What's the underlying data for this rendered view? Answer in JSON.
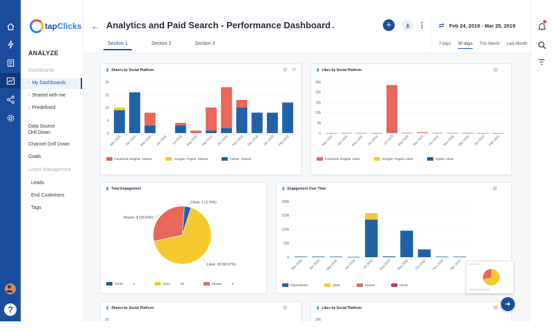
{
  "brand": {
    "logo_text_a": "tap",
    "logo_text_b": "Clicks"
  },
  "nav": {
    "section": "ANALYZE",
    "items": [
      {
        "label": "Dashboards",
        "muted": true
      },
      {
        "label": "My Dashboards",
        "selected": true
      },
      {
        "label": "Shared with me"
      },
      {
        "label": "Predefined"
      },
      {
        "label": "Data Source"
      },
      {
        "label": "Drill Down"
      },
      {
        "label": "Channel Drill Down"
      },
      {
        "label": "Goals"
      },
      {
        "label": "Leads Management",
        "muted": true
      },
      {
        "label": "Leads"
      },
      {
        "label": "End Customers"
      },
      {
        "label": "Tags"
      }
    ]
  },
  "header": {
    "title": "Analytics and Paid Search - Performance Dashboard",
    "date_range": "Feb 24, 2019 - Mar 25, 2019",
    "tabs": [
      "Section 1",
      "Section 2",
      "Section 3"
    ],
    "active_tab": 0,
    "ranges": [
      "7 days",
      "30 days",
      "This Month",
      "Last Month"
    ],
    "active_range": 1
  },
  "icons": {
    "rail": [
      "home-icon",
      "bolt-icon",
      "list-icon",
      "analytics-icon",
      "share-icon",
      "settings-icon"
    ],
    "right": [
      "bell-icon",
      "search-icon",
      "filter-icon"
    ],
    "accent": "#1a4d9c"
  },
  "colors": {
    "facebook": "#e8665a",
    "google": "#f7c930",
    "twitter": "#1f63a6",
    "instagram": "#e0267a"
  },
  "cards": {
    "shares": {
      "title": "Shares by Social Platform",
      "legend": [
        "Facebook Insights: Shares",
        "Google+ Pages: Shares",
        "Twitter: Shares"
      ],
      "chart_data": {
        "type": "bar",
        "stacked": true,
        "categories": [
          "Mar 2018",
          "Apr 2018",
          "May 2018",
          "Jun 2018",
          "Jul 2018",
          "Aug 2018",
          "Sep 2018",
          "Oct 2018",
          "Nov 2018",
          "Dec 2018",
          "Jan 2019",
          "Feb 2019"
        ],
        "series": [
          {
            "name": "Twitter: Shares",
            "color": "#1f63a6",
            "values": [
              9,
              16,
              3,
              0,
              3,
              0,
              1,
              2,
              10,
              8,
              8,
              12
            ]
          },
          {
            "name": "Google+ Pages: Shares",
            "color": "#f7c930",
            "values": [
              1,
              0,
              0,
              0,
              0,
              0,
              0,
              0,
              0,
              0,
              0,
              0
            ]
          },
          {
            "name": "Facebook Insights: Shares",
            "color": "#e8665a",
            "values": [
              0,
              0,
              5,
              0,
              1,
              1,
              9,
              16,
              3,
              0,
              0,
              0
            ]
          }
        ],
        "yticks": [
          0,
          5,
          10,
          15,
          20
        ],
        "ylim": [
          0,
          20
        ]
      }
    },
    "likes": {
      "title": "Likes by Social Platform",
      "legend": [
        "Facebook Insights: Likes",
        "Google+ Pages: Likes",
        "Twitter: Likes"
      ],
      "chart_data": {
        "type": "bar",
        "stacked": true,
        "categories": [
          "Mar 2018",
          "Apr 2018",
          "May 2018",
          "Jun 2018",
          "Jul 2018",
          "Aug 2018",
          "Sep 2018",
          "Oct 2018",
          "Nov 2018",
          "Dec 2018",
          "Jan 2019",
          "Feb 2019"
        ],
        "series": [
          {
            "name": "Twitter: Likes",
            "color": "#1f63a6",
            "values": [
              0,
              0,
              0,
              0,
              0,
              0,
              0,
              0,
              0,
              0,
              0,
              0
            ]
          },
          {
            "name": "Google+ Pages: Likes",
            "color": "#f7c930",
            "values": [
              0,
              0,
              0,
              0,
              0,
              0,
              0,
              0,
              0,
              0,
              0,
              0
            ]
          },
          {
            "name": "Facebook Insights: Likes",
            "color": "#e8665a",
            "values": [
              50,
              80,
              90,
              60,
              23500,
              150,
              400,
              100,
              90,
              70,
              60,
              50
            ]
          }
        ],
        "yticks": [
          "0",
          "5k",
          "10k",
          "15k",
          "20k",
          "25k"
        ],
        "ylim": [
          0,
          25000
        ]
      }
    },
    "total": {
      "title": "Total Engagement",
      "chart_data": {
        "type": "pie",
        "slices": [
          {
            "name": "Clicks",
            "value": 1,
            "pct": "3.70%",
            "label": "Clicks: 1 (3.70%)",
            "color": "#1f63a6"
          },
          {
            "name": "Likes",
            "value": 18,
            "pct": "66.67%",
            "label": "Likes: 18 (66.67%)",
            "color": "#f7c930"
          },
          {
            "name": "Shares",
            "value": 8,
            "pct": "29.63%",
            "label": "Shares: 8 (29.63%)",
            "color": "#e8665a"
          }
        ]
      },
      "legend": [
        {
          "name": "Clicks",
          "value": "1"
        },
        {
          "name": "Likes",
          "value": "18"
        },
        {
          "name": "Shares",
          "value": "8"
        }
      ]
    },
    "over_time": {
      "title": "Engagement Over Time",
      "legend": [
        "Impressions",
        "Likes",
        "Shares",
        "Clicks"
      ],
      "chart_data": {
        "type": "bar",
        "stacked": true,
        "categories": [
          "Mar 2018",
          "Apr 2018",
          "May 2018",
          "Jun 2018",
          "Jul 2018",
          "Aug 2018",
          "Sep 2018",
          "Oct 2018",
          "Nov 2018",
          "Dec 2018"
        ],
        "series": [
          {
            "name": "Impressions",
            "color": "#1f63a6",
            "values": [
              2000,
              2000,
              2000,
              1000,
              135000,
              3000,
              95000,
              28000,
              2000,
              2000
            ]
          },
          {
            "name": "Likes",
            "color": "#f7c930",
            "values": [
              0,
              0,
              0,
              0,
              23000,
              0,
              0,
              0,
              0,
              0
            ]
          },
          {
            "name": "Shares",
            "color": "#e8665a",
            "values": [
              0,
              0,
              0,
              0,
              0,
              0,
              0,
              0,
              0,
              0
            ]
          },
          {
            "name": "Clicks",
            "color": "#e0267a",
            "values": [
              0,
              0,
              0,
              0,
              0,
              0,
              0,
              0,
              0,
              0
            ]
          }
        ],
        "yticks": [
          "0",
          "50k",
          "100k",
          "150k",
          "200k"
        ],
        "ylim": [
          0,
          200000
        ]
      }
    },
    "shares2": {
      "title": "Shares by Social Platform",
      "ytick": "20"
    },
    "likes2": {
      "title": "Likes by Social Platform",
      "ytick": "30k"
    }
  }
}
